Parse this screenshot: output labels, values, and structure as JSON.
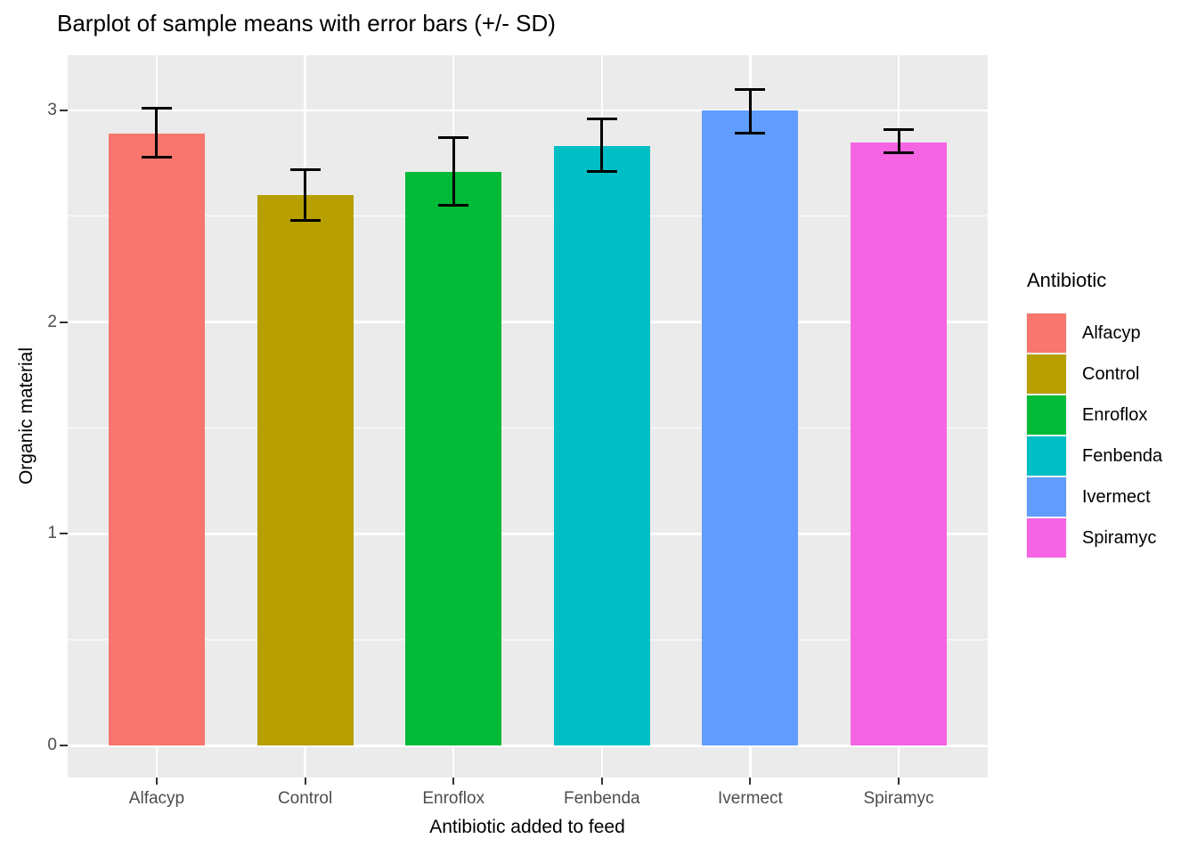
{
  "chart_data": {
    "type": "bar",
    "title": "Barplot of sample means with error bars (+/- SD)",
    "xlabel": "Antibiotic added to feed",
    "ylabel": "Organic material",
    "legend_title": "Antibiotic",
    "legend_position": "right",
    "categories": [
      "Alfacyp",
      "Control",
      "Enroflox",
      "Fenbenda",
      "Ivermect",
      "Spiramyc"
    ],
    "series": [
      {
        "name": "mean",
        "values": [
          2.89,
          2.6,
          2.71,
          2.83,
          3.0,
          2.85
        ]
      },
      {
        "name": "mean_minus_sd",
        "values": [
          2.78,
          2.48,
          2.55,
          2.71,
          2.89,
          2.8
        ]
      },
      {
        "name": "mean_plus_sd",
        "values": [
          3.01,
          2.72,
          2.87,
          2.96,
          3.1,
          2.91
        ]
      }
    ],
    "bar_colors": [
      "#F8766D",
      "#B79F00",
      "#00BA38",
      "#00BFC4",
      "#619CFF",
      "#F564E2"
    ],
    "yticks": [
      0,
      1,
      2,
      3
    ],
    "minor_gridlines": [
      0.5,
      1.5,
      2.5
    ],
    "ylim": [
      -0.15,
      3.26
    ],
    "grid": "white major and minor horizontal lines, white vertical major lines at category centers, on gray panel",
    "panel_bg": "#EBEBEB",
    "gridline_color": "#FFFFFF",
    "errorbar_color": "#000000",
    "axis_text_color": "#4D4D4D",
    "axis_title_color": "#000000"
  }
}
